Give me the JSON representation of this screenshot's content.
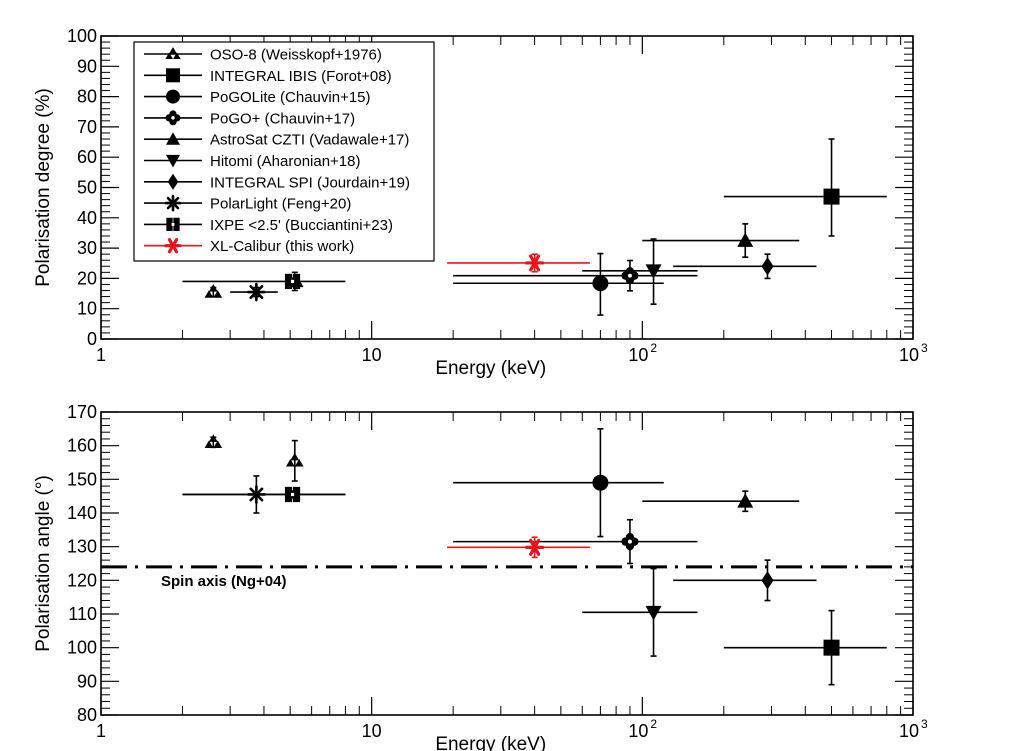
{
  "chart_data": [
    {
      "type": "scatter",
      "id": "degree",
      "ylabel": "Polarisation degree (%)",
      "xlabel": "Energy (keV)",
      "x_scale": "log",
      "xlim": [
        1,
        1000
      ],
      "ylim": [
        0,
        100
      ],
      "yticks": [
        "0",
        "10",
        "20",
        "30",
        "40",
        "50",
        "60",
        "70",
        "80",
        "90",
        "100"
      ],
      "xticks": [
        {
          "v": 1,
          "t": "1"
        },
        {
          "v": 10,
          "t": "10"
        },
        {
          "v": 100,
          "t": "10",
          "sup": "2"
        },
        {
          "v": 1000,
          "t": "10",
          "sup": "3"
        }
      ],
      "points": [
        {
          "series": "OSO-8 (Weisskopf+1976)",
          "marker": "tri3",
          "x": 2.6,
          "y": 15.5,
          "yerr": [
            1.5,
            1.5
          ]
        },
        {
          "series": "OSO-8 (Weisskopf+1976)",
          "marker": "tri3",
          "x": 5.2,
          "y": 19,
          "yerr": [
            3,
            3
          ]
        },
        {
          "series": "INTEGRAL IBIS (Forot+08)",
          "marker": "square",
          "x": 500,
          "y": 47,
          "xerr": [
            200,
            800
          ],
          "yerr": [
            13,
            19
          ]
        },
        {
          "series": "PoGOLite (Chauvin+15)",
          "marker": "circle",
          "x": 70,
          "y": 18.4,
          "xerr": [
            20,
            120
          ],
          "yerr": [
            10.5,
            9.8
          ]
        },
        {
          "series": "PoGO+ (Chauvin+17)",
          "marker": "cross",
          "x": 90,
          "y": 20.9,
          "xerr": [
            20,
            160
          ],
          "yerr": [
            5,
            5
          ]
        },
        {
          "series": "AstroSat CZTI (Vadawale+17)",
          "marker": "triup",
          "x": 240,
          "y": 32.5,
          "xerr": [
            100,
            380
          ],
          "yerr": [
            5.5,
            5.5
          ]
        },
        {
          "series": "Hitomi (Aharonian+18)",
          "marker": "tridown",
          "x": 110,
          "y": 22.5,
          "xerr": [
            60,
            160
          ],
          "yerr": [
            11,
            10.5
          ]
        },
        {
          "series": "INTEGRAL SPI (Jourdain+19)",
          "marker": "diamond",
          "x": 290,
          "y": 24,
          "xerr": [
            130,
            440
          ],
          "yerr": [
            4,
            4
          ]
        },
        {
          "series": "PolarLight (Feng+20)",
          "marker": "star",
          "x": 3.75,
          "y": 15.5,
          "xerr": [
            3,
            4.5
          ],
          "yerr": [
            1.5,
            1.5
          ]
        },
        {
          "series": "IXPE <2.5' (Bucciantini+23)",
          "marker": "plussq",
          "x": 5.1,
          "y": 19.0,
          "xerr": [
            2,
            8
          ],
          "yerr": [
            1,
            1
          ]
        },
        {
          "series": "XL-Calibur (this work)",
          "marker": "redstar",
          "x": 40,
          "y": 25.1,
          "xerr": [
            19,
            64
          ],
          "yerr": [
            2.9,
            2.9
          ]
        }
      ]
    },
    {
      "type": "scatter",
      "id": "angle",
      "ylabel": "Polarisation angle (°)",
      "xlabel": "Energy (keV)",
      "x_scale": "log",
      "xlim": [
        1,
        1000
      ],
      "ylim": [
        80,
        170
      ],
      "yticks": [
        "80",
        "90",
        "100",
        "110",
        "120",
        "130",
        "140",
        "150",
        "160",
        "170"
      ],
      "xticks": [
        {
          "v": 1,
          "t": "1"
        },
        {
          "v": 10,
          "t": "10"
        },
        {
          "v": 100,
          "t": "10",
          "sup": "2"
        },
        {
          "v": 1000,
          "t": "10",
          "sup": "3"
        }
      ],
      "reference_line": {
        "y": 124,
        "label": "Spin axis (Ng+04)"
      },
      "points": [
        {
          "series": "OSO-8 (Weisskopf+1976)",
          "marker": "tri3",
          "x": 2.6,
          "y": 161,
          "yerr": [
            1.5,
            1.5
          ]
        },
        {
          "series": "OSO-8 (Weisskopf+1976)",
          "marker": "tri3",
          "x": 5.2,
          "y": 155.5,
          "yerr": [
            6,
            6
          ]
        },
        {
          "series": "INTEGRAL IBIS (Forot+08)",
          "marker": "square",
          "x": 500,
          "y": 100,
          "xerr": [
            200,
            800
          ],
          "yerr": [
            11,
            11
          ]
        },
        {
          "series": "PoGOLite (Chauvin+15)",
          "marker": "circle",
          "x": 70,
          "y": 149,
          "xerr": [
            20,
            120
          ],
          "yerr": [
            16,
            16
          ]
        },
        {
          "series": "PoGO+ (Chauvin+17)",
          "marker": "cross",
          "x": 90,
          "y": 131.5,
          "xerr": [
            20,
            160
          ],
          "yerr": [
            6.5,
            6.5
          ]
        },
        {
          "series": "AstroSat CZTI (Vadawale+17)",
          "marker": "triup",
          "x": 240,
          "y": 143.5,
          "xerr": [
            100,
            380
          ],
          "yerr": [
            3,
            3
          ]
        },
        {
          "series": "Hitomi (Aharonian+18)",
          "marker": "tridown",
          "x": 110,
          "y": 110.5,
          "xerr": [
            60,
            160
          ],
          "yerr": [
            13,
            13
          ]
        },
        {
          "series": "INTEGRAL SPI (Jourdain+19)",
          "marker": "diamond",
          "x": 290,
          "y": 120,
          "xerr": [
            130,
            440
          ],
          "yerr": [
            6,
            6
          ]
        },
        {
          "series": "PolarLight (Feng+20)",
          "marker": "star",
          "x": 3.75,
          "y": 145.5,
          "xerr": [
            2,
            8
          ],
          "yerr": [
            5.5,
            5.5
          ]
        },
        {
          "series": "IXPE <2.5' (Bucciantini+23)",
          "marker": "plussq",
          "x": 5.1,
          "y": 145.5,
          "xerr": [
            2,
            8
          ],
          "yerr": [
            1,
            1
          ]
        },
        {
          "series": "XL-Calibur (this work)",
          "marker": "redstar",
          "x": 40,
          "y": 129.8,
          "xerr": [
            19,
            64
          ],
          "yerr": [
            3,
            3
          ]
        }
      ]
    }
  ],
  "legend": {
    "position": "top-left",
    "entries": [
      {
        "label": "OSO-8 (Weisskopf+1976)",
        "marker": "tri3"
      },
      {
        "label": "INTEGRAL IBIS (Forot+08)",
        "marker": "square"
      },
      {
        "label": "PoGOLite (Chauvin+15)",
        "marker": "circle"
      },
      {
        "label": "PoGO+ (Chauvin+17)",
        "marker": "cross"
      },
      {
        "label": "AstroSat CZTI (Vadawale+17)",
        "marker": "triup"
      },
      {
        "label": "Hitomi (Aharonian+18)",
        "marker": "tridown"
      },
      {
        "label": "INTEGRAL SPI (Jourdain+19)",
        "marker": "diamond"
      },
      {
        "label": "PolarLight (Feng+20)",
        "marker": "star"
      },
      {
        "label": "IXPE <2.5' (Bucciantini+23)",
        "marker": "plussq"
      },
      {
        "label": "XL-Calibur (this work)",
        "marker": "redstar"
      }
    ]
  },
  "colors": {
    "default": "#000000",
    "highlight": "#e8141a"
  }
}
